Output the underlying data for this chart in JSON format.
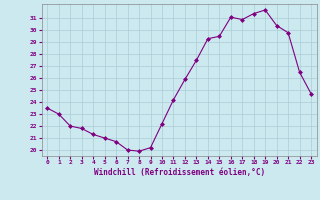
{
  "x": [
    0,
    1,
    2,
    3,
    4,
    5,
    6,
    7,
    8,
    9,
    10,
    11,
    12,
    13,
    14,
    15,
    16,
    17,
    18,
    19,
    20,
    21,
    22,
    23
  ],
  "y": [
    23.5,
    23.0,
    22.0,
    21.8,
    21.3,
    21.0,
    20.7,
    20.0,
    19.9,
    20.2,
    22.2,
    24.2,
    25.9,
    27.5,
    29.3,
    29.5,
    31.1,
    30.9,
    31.4,
    31.7,
    30.4,
    29.8,
    26.5,
    24.7
  ],
  "xlabel": "Windchill (Refroidissement éolien,°C)",
  "ylim": [
    19.5,
    32.2
  ],
  "xlim": [
    -0.5,
    23.5
  ],
  "yticks": [
    20,
    21,
    22,
    23,
    24,
    25,
    26,
    27,
    28,
    29,
    30,
    31
  ],
  "xticks": [
    0,
    1,
    2,
    3,
    4,
    5,
    6,
    7,
    8,
    9,
    10,
    11,
    12,
    13,
    14,
    15,
    16,
    17,
    18,
    19,
    20,
    21,
    22,
    23
  ],
  "line_color": "#800080",
  "marker_color": "#800080",
  "bg_color": "#cce9f0",
  "grid_color": "#aacdd6",
  "tick_label_color": "#800080",
  "xlabel_color": "#800080"
}
